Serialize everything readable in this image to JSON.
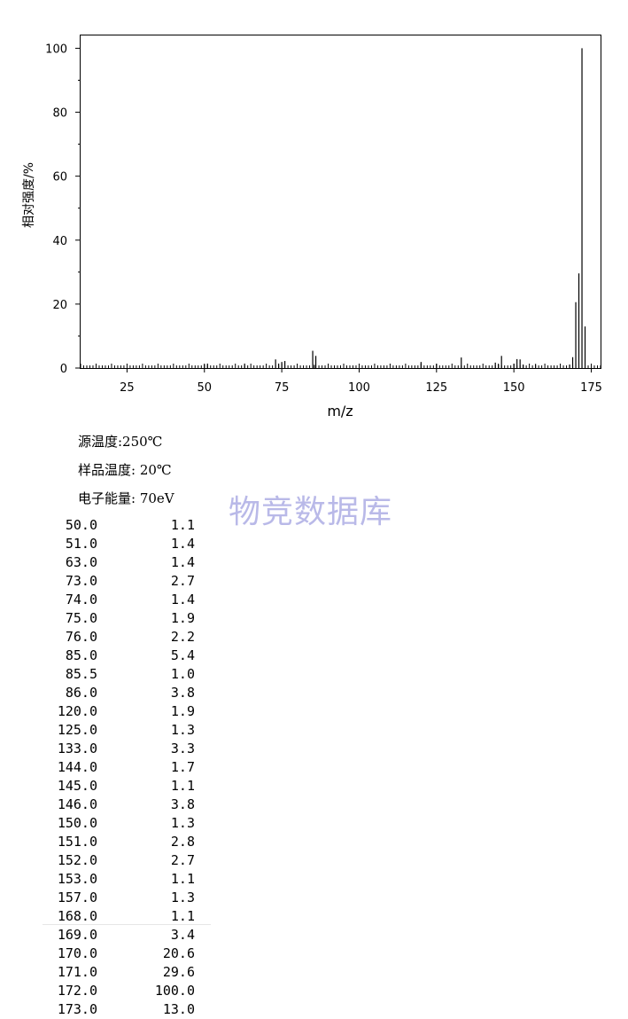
{
  "chart_data": {
    "type": "bar",
    "xlabel": "m/z",
    "ylabel": "相对强度/%",
    "xlim": [
      10,
      178
    ],
    "ylim": [
      0,
      104
    ],
    "x_ticks": [
      25,
      50,
      75,
      100,
      125,
      150,
      175
    ],
    "y_ticks": [
      0,
      20,
      40,
      60,
      80,
      100
    ],
    "x": [
      50.0,
      51.0,
      63.0,
      73.0,
      74.0,
      75.0,
      76.0,
      85.0,
      85.5,
      86.0,
      120.0,
      125.0,
      133.0,
      144.0,
      145.0,
      146.0,
      150.0,
      151.0,
      152.0,
      153.0,
      157.0,
      168.0,
      169.0,
      170.0,
      171.0,
      172.0,
      173.0
    ],
    "values": [
      1.1,
      1.4,
      1.4,
      2.7,
      1.4,
      1.9,
      2.2,
      5.4,
      1.0,
      3.8,
      1.9,
      1.3,
      3.3,
      1.7,
      1.1,
      3.8,
      1.3,
      2.8,
      2.7,
      1.1,
      1.3,
      1.1,
      3.4,
      20.6,
      29.6,
      100.0,
      13.0
    ]
  },
  "conditions": {
    "source_temp": "源温度:250℃",
    "sample_temp": "样品温度: 20℃",
    "electron_energy": "电子能量: 70eV"
  },
  "watermark": "物竞数据库",
  "peaks": [
    {
      "mz": "50.0",
      "intensity": "1.1"
    },
    {
      "mz": "51.0",
      "intensity": "1.4"
    },
    {
      "mz": "63.0",
      "intensity": "1.4"
    },
    {
      "mz": "73.0",
      "intensity": "2.7"
    },
    {
      "mz": "74.0",
      "intensity": "1.4"
    },
    {
      "mz": "75.0",
      "intensity": "1.9"
    },
    {
      "mz": "76.0",
      "intensity": "2.2"
    },
    {
      "mz": "85.0",
      "intensity": "5.4"
    },
    {
      "mz": "85.5",
      "intensity": "1.0"
    },
    {
      "mz": "86.0",
      "intensity": "3.8"
    },
    {
      "mz": "120.0",
      "intensity": "1.9"
    },
    {
      "mz": "125.0",
      "intensity": "1.3"
    },
    {
      "mz": "133.0",
      "intensity": "3.3"
    },
    {
      "mz": "144.0",
      "intensity": "1.7"
    },
    {
      "mz": "145.0",
      "intensity": "1.1"
    },
    {
      "mz": "146.0",
      "intensity": "3.8"
    },
    {
      "mz": "150.0",
      "intensity": "1.3"
    },
    {
      "mz": "151.0",
      "intensity": "2.8"
    },
    {
      "mz": "152.0",
      "intensity": "2.7"
    },
    {
      "mz": "153.0",
      "intensity": "1.1"
    },
    {
      "mz": "157.0",
      "intensity": "1.3"
    },
    {
      "mz": "168.0",
      "intensity": "1.1"
    },
    {
      "mz": "169.0",
      "intensity": "3.4"
    },
    {
      "mz": "170.0",
      "intensity": "20.6"
    },
    {
      "mz": "171.0",
      "intensity": "29.6"
    },
    {
      "mz": "172.0",
      "intensity": "100.0"
    },
    {
      "mz": "173.0",
      "intensity": "13.0"
    }
  ]
}
